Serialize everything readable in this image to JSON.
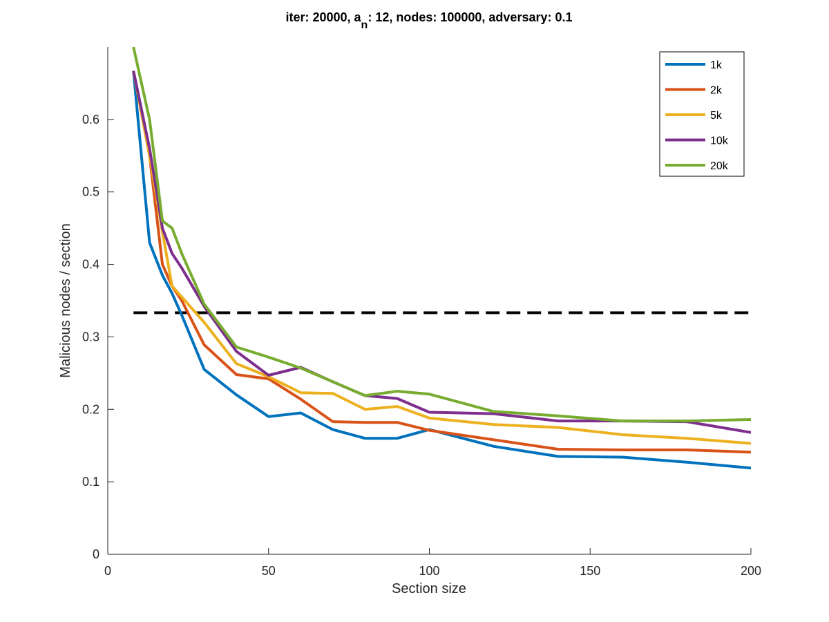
{
  "chart_data": {
    "type": "line",
    "title": {
      "prefix": "iter: 20000, a",
      "subscript": "n",
      "suffix": ": 12, nodes: 100000, adversary: 0.1"
    },
    "xlabel": "Section size",
    "ylabel": "Malicious nodes / section",
    "xlim": [
      0,
      200
    ],
    "ylim": [
      0,
      0.7
    ],
    "x_ticks": [
      0,
      50,
      100,
      150,
      200
    ],
    "y_ticks": [
      0,
      0.1,
      0.2,
      0.3,
      0.4,
      0.5,
      0.6
    ],
    "x_tick_labels": [
      "0",
      "50",
      "100",
      "150",
      "200"
    ],
    "y_tick_labels": [
      "0",
      "0.1",
      "0.2",
      "0.3",
      "0.4",
      "0.5",
      "0.6"
    ],
    "grid": false,
    "legend_position": "top-right",
    "threshold": {
      "value": 0.3333,
      "x_range": [
        8,
        200
      ],
      "style": "dashed",
      "color": "#000000"
    },
    "series": [
      {
        "name": "1k",
        "color": "#0072BD",
        "points": [
          [
            8,
            0.667
          ],
          [
            13,
            0.43
          ],
          [
            17,
            0.385
          ],
          [
            20,
            0.36
          ],
          [
            23,
            0.33
          ],
          [
            30,
            0.255
          ],
          [
            40,
            0.22
          ],
          [
            50,
            0.19
          ],
          [
            60,
            0.195
          ],
          [
            70,
            0.172
          ],
          [
            80,
            0.16
          ],
          [
            90,
            0.16
          ],
          [
            100,
            0.172
          ],
          [
            120,
            0.149
          ],
          [
            140,
            0.135
          ],
          [
            160,
            0.134
          ],
          [
            180,
            0.127
          ],
          [
            200,
            0.119
          ]
        ]
      },
      {
        "name": "2k",
        "color": "#D95319",
        "points": [
          [
            8,
            0.667
          ],
          [
            13,
            0.55
          ],
          [
            17,
            0.4
          ],
          [
            20,
            0.37
          ],
          [
            23,
            0.35
          ],
          [
            30,
            0.289
          ],
          [
            40,
            0.248
          ],
          [
            50,
            0.242
          ],
          [
            60,
            0.214
          ],
          [
            70,
            0.183
          ],
          [
            80,
            0.182
          ],
          [
            90,
            0.182
          ],
          [
            100,
            0.171
          ],
          [
            120,
            0.158
          ],
          [
            140,
            0.145
          ],
          [
            160,
            0.144
          ],
          [
            180,
            0.144
          ],
          [
            200,
            0.141
          ]
        ]
      },
      {
        "name": "5k",
        "color": "#EDB120",
        "points": [
          [
            8,
            0.667
          ],
          [
            13,
            0.55
          ],
          [
            17,
            0.445
          ],
          [
            20,
            0.37
          ],
          [
            23,
            0.355
          ],
          [
            30,
            0.32
          ],
          [
            40,
            0.263
          ],
          [
            50,
            0.245
          ],
          [
            60,
            0.223
          ],
          [
            70,
            0.222
          ],
          [
            80,
            0.2
          ],
          [
            90,
            0.204
          ],
          [
            100,
            0.188
          ],
          [
            120,
            0.179
          ],
          [
            140,
            0.175
          ],
          [
            160,
            0.165
          ],
          [
            180,
            0.16
          ],
          [
            200,
            0.153
          ]
        ]
      },
      {
        "name": "10k",
        "color": "#7E2F8E",
        "points": [
          [
            8,
            0.667
          ],
          [
            13,
            0.56
          ],
          [
            17,
            0.45
          ],
          [
            20,
            0.415
          ],
          [
            23,
            0.395
          ],
          [
            30,
            0.342
          ],
          [
            40,
            0.28
          ],
          [
            50,
            0.247
          ],
          [
            60,
            0.258
          ],
          [
            70,
            0.238
          ],
          [
            80,
            0.219
          ],
          [
            90,
            0.215
          ],
          [
            100,
            0.196
          ],
          [
            120,
            0.194
          ],
          [
            140,
            0.184
          ],
          [
            160,
            0.184
          ],
          [
            180,
            0.183
          ],
          [
            200,
            0.168
          ]
        ]
      },
      {
        "name": "20k",
        "color": "#77AC30",
        "points": [
          [
            8,
            0.7
          ],
          [
            13,
            0.6
          ],
          [
            17,
            0.46
          ],
          [
            20,
            0.45
          ],
          [
            23,
            0.415
          ],
          [
            30,
            0.345
          ],
          [
            40,
            0.286
          ],
          [
            50,
            0.272
          ],
          [
            60,
            0.257
          ],
          [
            70,
            0.238
          ],
          [
            80,
            0.219
          ],
          [
            90,
            0.225
          ],
          [
            100,
            0.221
          ],
          [
            120,
            0.197
          ],
          [
            140,
            0.191
          ],
          [
            160,
            0.184
          ],
          [
            180,
            0.184
          ],
          [
            200,
            0.186
          ]
        ]
      }
    ]
  }
}
